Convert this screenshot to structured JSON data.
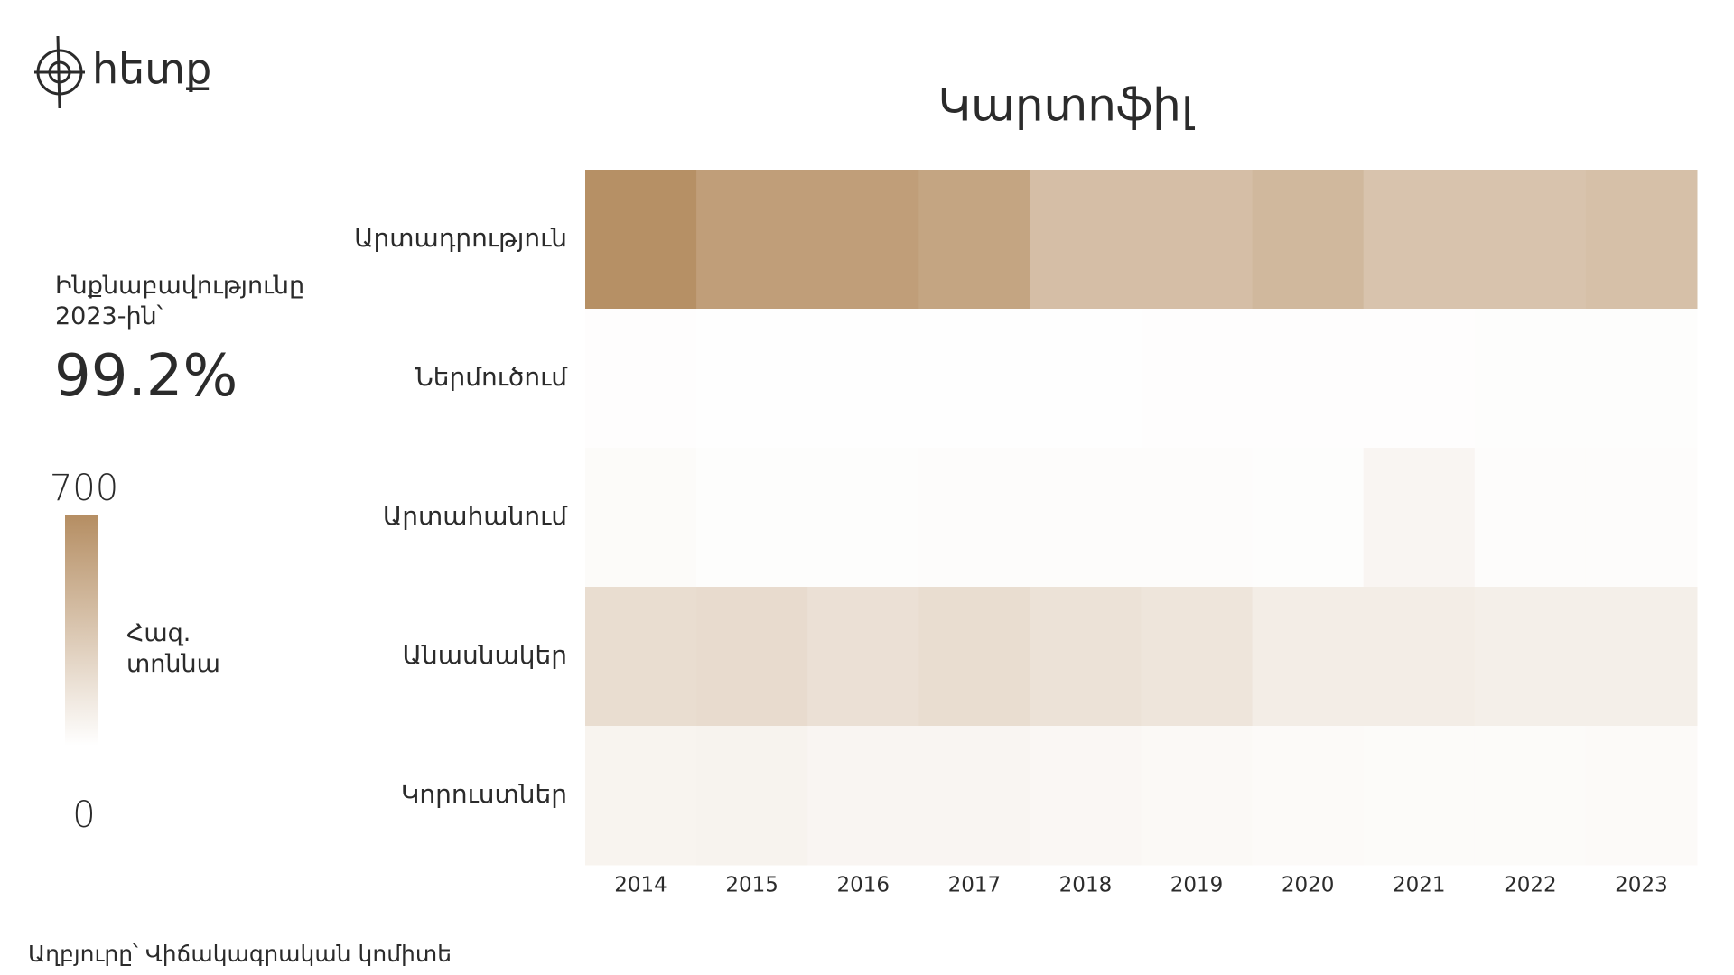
{
  "brand": "հետք",
  "summary": {
    "label": "Ինքնաբավությունը 2023-ին՝",
    "value": "99.2%"
  },
  "source": "Աղբյուրը՝ Վիճակագրական կոմիտե",
  "chart_data": {
    "type": "heatmap",
    "title": "Կարտոֆիլ",
    "x": [
      "2014",
      "2015",
      "2016",
      "2017",
      "2018",
      "2019",
      "2020",
      "2021",
      "2022",
      "2023"
    ],
    "y": [
      "Արտադրություն",
      "Ներմուծում",
      "Արտահանում",
      "Անասնակեր",
      "Կորուստներ"
    ],
    "values": [
      [
        690,
        600,
        600,
        560,
        400,
        400,
        440,
        370,
        370,
        390
      ],
      [
        10,
        5,
        5,
        5,
        5,
        10,
        10,
        10,
        15,
        15
      ],
      [
        25,
        15,
        15,
        20,
        20,
        20,
        15,
        60,
        20,
        20
      ],
      [
        210,
        220,
        190,
        210,
        180,
        160,
        110,
        110,
        100,
        100
      ],
      [
        70,
        75,
        60,
        60,
        50,
        40,
        30,
        25,
        25,
        30
      ]
    ],
    "colorscale": [
      "#ffffff",
      "#b58e63"
    ],
    "zlim": [
      0,
      700
    ],
    "zticks": [
      0,
      700
    ],
    "colorbar_label": "Հազ. տոննա"
  }
}
